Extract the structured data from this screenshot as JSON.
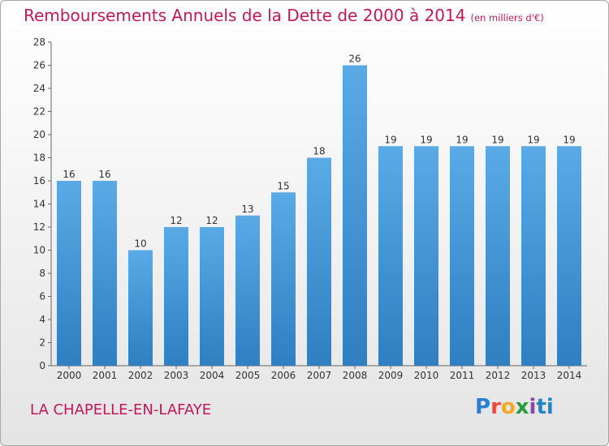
{
  "header": {
    "title": "Remboursements Annuels de la Dette de 2000 à 2014",
    "unit": "(en milliers d'€)"
  },
  "footer": {
    "town": "LA CHAPELLE-EN-LAFAYE",
    "logo": "Proxiti"
  },
  "colors": {
    "bar": "#5aaae6",
    "bar_dark": "#2f7fc1",
    "title": "#c2185b",
    "axis_text": "#333333"
  },
  "chart_data": {
    "type": "bar",
    "title": "Remboursements Annuels de la Dette de 2000 à 2014",
    "xlabel": "",
    "ylabel": "",
    "ylim": [
      0,
      28
    ],
    "yticks": [
      0,
      2,
      4,
      6,
      8,
      10,
      12,
      14,
      16,
      18,
      20,
      22,
      24,
      26,
      28
    ],
    "grid": false,
    "categories": [
      "2000",
      "2001",
      "2002",
      "2003",
      "2004",
      "2005",
      "2006",
      "2007",
      "2008",
      "2009",
      "2010",
      "2011",
      "2012",
      "2013",
      "2014"
    ],
    "values": [
      16,
      16,
      10,
      12,
      12,
      13,
      15,
      18,
      26,
      19,
      19,
      19,
      19,
      19,
      19
    ]
  }
}
